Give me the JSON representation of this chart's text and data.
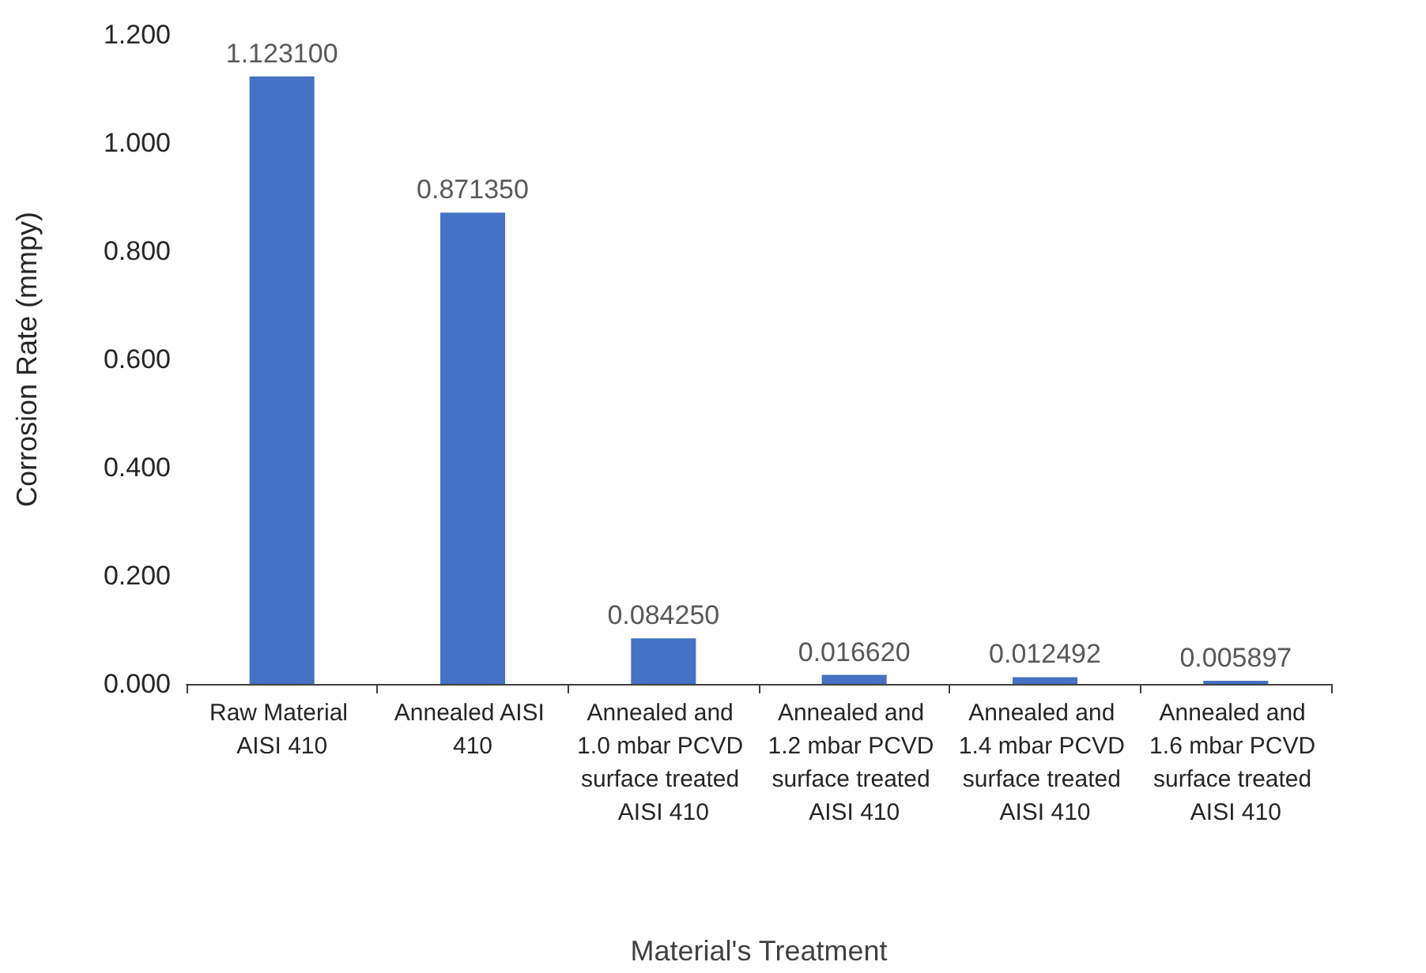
{
  "chart_data": {
    "type": "bar",
    "xlabel": "Material's Treatment",
    "ylabel": "Corrosion Rate (mmpy)",
    "categories": [
      "Raw Material AISI 410",
      "Annealed AISI 410",
      "Annealed and 1.0 mbar PCVD surface treated AISI 410",
      "Annealed and 1.2 mbar PCVD surface treated AISI 410",
      "Annealed and 1.4 mbar PCVD surface treated AISI 410",
      "Annealed and 1.6 mbar PCVD surface treated AISI 410"
    ],
    "values": [
      1.1231,
      0.87135,
      0.08425,
      0.01662,
      0.012492,
      0.005897
    ],
    "value_labels": [
      "1.123100",
      "0.871350",
      "0.084250",
      "0.016620",
      "0.012492",
      "0.005897"
    ],
    "color": "#4472c4",
    "ylim": [
      0,
      1.2
    ],
    "yticks": [
      {
        "value": 0,
        "label": "0.000"
      },
      {
        "value": 0.2,
        "label": "0.200"
      },
      {
        "value": 0.4,
        "label": "0.400"
      },
      {
        "value": 0.6,
        "label": "0.600"
      },
      {
        "value": 0.8,
        "label": "0.800"
      },
      {
        "value": 1.0,
        "label": "1.000"
      },
      {
        "value": 1.2,
        "label": "1.200"
      }
    ],
    "grid": false
  }
}
